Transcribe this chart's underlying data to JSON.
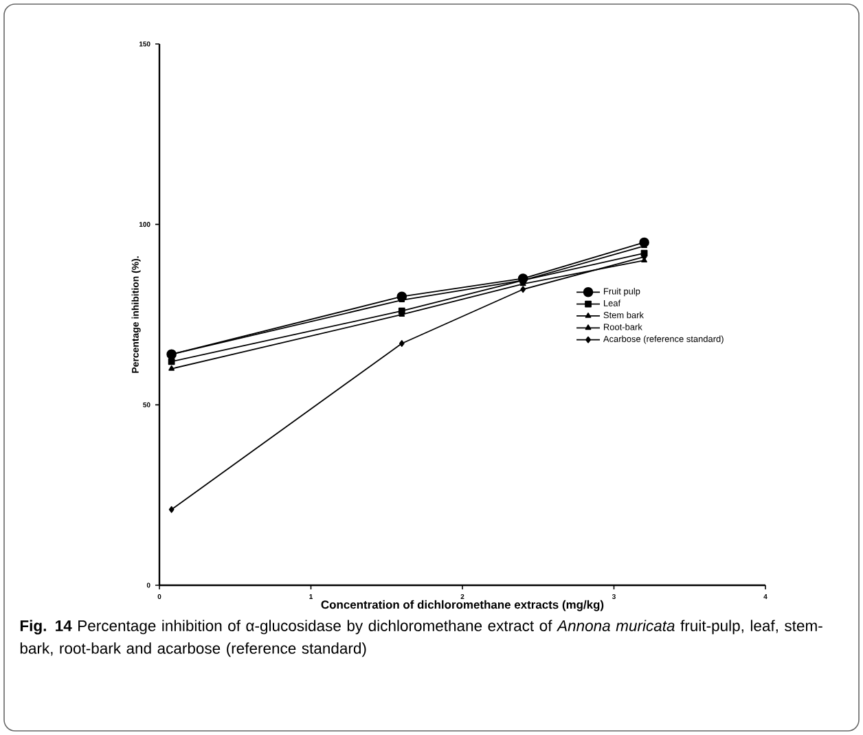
{
  "chart_data": {
    "type": "line",
    "xlabel": "Concentration of dichloromethane extracts (mg/kg)",
    "ylabel": "Percentage inhibition (%).",
    "annotations": [
      "**Fig. 14** Percentage inhibition of α-glucosidase by dichloromethane extract of *Annona muricata* fruit-pulp, leaf, stem-bark, root-bark and acarbose (reference standard)"
    ],
    "x": [
      0.08,
      1.6,
      2.4,
      3.2
    ],
    "series": [
      {
        "name": "Fruit pulp",
        "color": "#000000",
        "marker": "circle",
        "values": [
          64,
          80,
          85,
          95
        ]
      },
      {
        "name": "Leaf",
        "color": "#000000",
        "marker": "square",
        "values": [
          62,
          76,
          84.5,
          92
        ]
      },
      {
        "name": "Stem bark",
        "color": "#000000",
        "marker": "triangle",
        "values": [
          64,
          79,
          84.5,
          94
        ]
      },
      {
        "name": "Root-bark",
        "color": "#000000",
        "marker": "triangle",
        "values": [
          60,
          75,
          83.5,
          90
        ]
      },
      {
        "name": "Acarbose (reference standard)",
        "color": "#000000",
        "marker": "diamond",
        "values": [
          21,
          67,
          82,
          91
        ]
      }
    ],
    "xlim": [
      0,
      4
    ],
    "xticks": [
      0,
      1,
      2,
      3,
      4
    ],
    "ylim": [
      0,
      150
    ],
    "yticks": [
      0,
      50,
      100,
      150
    ],
    "legend": "right",
    "grid": false,
    "line_style": "solid"
  }
}
